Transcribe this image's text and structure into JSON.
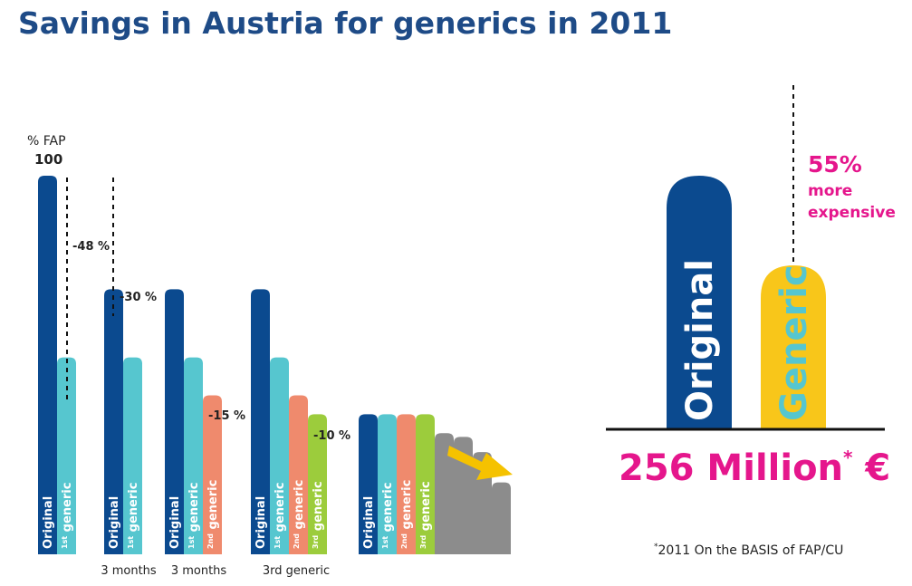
{
  "title": "Savings in Austria for generics in 2011",
  "colors": {
    "original": "#0b4a8f",
    "generic1": "#56c6cf",
    "generic2": "#ef8a6d",
    "generic3": "#9ccc3c",
    "later": "#8c8c8c",
    "generic_big": "#f8c61a",
    "magenta": "#e5168c",
    "title": "#1e4b87",
    "arrow": "#f5c200"
  },
  "chart_data": [
    {
      "type": "bar",
      "title": "",
      "ylabel": "% FAP",
      "y_top_label": "100",
      "groups": [
        {
          "caption": "",
          "bars": [
            {
              "label": "Original",
              "sup": "",
              "series": "original",
              "value": 100
            },
            {
              "label": "generic",
              "sup": "1st",
              "series": "generic1",
              "value": 52
            }
          ],
          "annotation": "-48 %"
        },
        {
          "caption": "3 months",
          "bars": [
            {
              "label": "Original",
              "sup": "",
              "series": "original",
              "value": 70
            },
            {
              "label": "generic",
              "sup": "1st",
              "series": "generic1",
              "value": 52
            }
          ],
          "annotation": "-30 %"
        },
        {
          "caption": "3 months",
          "bars": [
            {
              "label": "Original",
              "sup": "",
              "series": "original",
              "value": 70
            },
            {
              "label": "generic",
              "sup": "1st",
              "series": "generic1",
              "value": 52
            },
            {
              "label": "generic",
              "sup": "2nd",
              "series": "generic2",
              "value": 42
            }
          ],
          "annotation": "-15 %"
        },
        {
          "caption": "3rd generic",
          "bars": [
            {
              "label": "Original",
              "sup": "",
              "series": "original",
              "value": 70
            },
            {
              "label": "generic",
              "sup": "1st",
              "series": "generic1",
              "value": 52
            },
            {
              "label": "generic",
              "sup": "2nd",
              "series": "generic2",
              "value": 42
            },
            {
              "label": "generic",
              "sup": "3rd",
              "series": "generic3",
              "value": 37
            }
          ],
          "annotation": "-10 %"
        },
        {
          "caption": "",
          "bars": [
            {
              "label": "Original",
              "sup": "",
              "series": "original",
              "value": 37
            },
            {
              "label": "generic",
              "sup": "1st",
              "series": "generic1",
              "value": 37
            },
            {
              "label": "generic",
              "sup": "2nd",
              "series": "generic2",
              "value": 37
            },
            {
              "label": "generic",
              "sup": "3rd",
              "series": "generic3",
              "value": 37
            },
            {
              "label": "",
              "sup": "",
              "series": "later",
              "value": 32
            },
            {
              "label": "",
              "sup": "",
              "series": "later",
              "value": 31
            },
            {
              "label": "",
              "sup": "",
              "series": "later",
              "value": 27
            },
            {
              "label": "",
              "sup": "",
              "series": "later",
              "value": 19
            }
          ],
          "annotation": ""
        }
      ]
    },
    {
      "type": "bar",
      "title": "",
      "categories": [
        "Original",
        "Generic"
      ],
      "values": [
        155,
        100
      ],
      "annotation": {
        "value": "55%",
        "text": [
          "more",
          "expensive"
        ]
      },
      "total": {
        "value": "256 Million",
        "sup": "*",
        "unit": "€"
      },
      "footnote": {
        "mark": "*",
        "text": "2011 On the BASIS of FAP/CU"
      }
    }
  ]
}
